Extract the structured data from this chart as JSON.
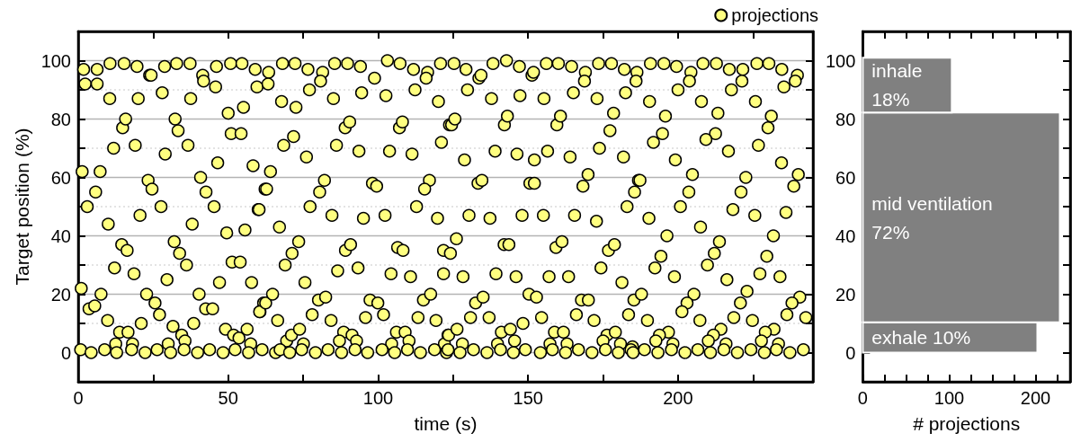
{
  "chart_data": [
    {
      "type": "scatter",
      "xlabel": "time (s)",
      "ylabel": "Target position (%)",
      "legend": "top right",
      "marker": "circle",
      "grid": "y",
      "xlim": [
        0,
        245
      ],
      "xticks": [
        0,
        {
          "value": 25,
          "label": null
        },
        50,
        {
          "value": 75,
          "label": null
        },
        100,
        {
          "value": 125,
          "label": null
        },
        150,
        {
          "value": 175,
          "label": null
        },
        200,
        {
          "value": 225,
          "label": null
        }
      ],
      "ylim": [
        -10,
        110
      ],
      "yticks": [
        0,
        {
          "value": 10,
          "label": null
        },
        20,
        {
          "value": 30,
          "label": null
        },
        40,
        {
          "value": 50,
          "label": null
        },
        60,
        {
          "value": 70,
          "label": null
        },
        80,
        {
          "value": 90,
          "label": null
        },
        100
      ],
      "series": [
        {
          "name": "projections",
          "color": "#ffff80",
          "x": [
            1.8,
            2.3,
            6.3,
            6.3,
            10.6,
            15.3,
            19.6,
            23.8,
            24.3,
            28.8,
            32.8,
            37.3,
            41.5,
            41.8,
            46.1,
            45.8,
            50.8,
            54.6,
            59.0,
            59.6,
            10.5,
            20,
            28,
            37.5,
            50,
            55.1,
            14.8,
            15.8,
            32.3,
            33.3,
            51,
            54.3,
            11.8,
            19,
            29,
            36.6,
            46.5,
            58.3,
            1.3,
            7.3,
            23.3,
            24.6,
            40.8,
            42.6,
            62.3,
            3,
            5.8,
            27.6,
            45.3,
            60,
            10,
            20.6,
            38,
            49.5,
            55.6,
            14.5,
            16.3,
            32,
            33.8,
            36.1,
            51.3,
            54,
            12.1,
            18.6,
            29.6,
            47.1,
            57.8,
            1,
            7.6,
            22.8,
            25.6,
            3.6,
            5.5,
            40.3,
            42.5,
            44.8,
            61.8,
            60.6,
            9.8,
            21,
            27.1,
            38.5,
            49.1,
            56.3,
            13.8,
            16.6,
            18.1,
            12.5,
            31.6,
            34.5,
            35.6,
            51.8,
            53.6,
            30,
            57.5,
            0.8,
            4.3,
            8.8,
            12.8,
            17.8,
            22.3,
            26.3,
            30.8,
            35.3,
            39.8,
            43.8,
            48.3,
            52.3,
            56.8,
            61.3,
            63.5,
            63.3,
            68.1,
            72.3,
            76.6,
            81.5,
            80.8,
            85.5,
            89.8,
            94.1,
            98.8,
            103.1,
            107.3,
            111.8,
            116.5,
            116,
            120.8,
            67.8,
            72.6,
            77.1,
            85.1,
            94.5,
            102.6,
            112.3,
            120.1,
            89,
            90.5,
            107.1,
            108.1,
            123.8,
            68.5,
            71.8,
            76.1,
            86.1,
            93.6,
            103.8,
            111.3,
            121.1,
            64.1,
            62.8,
            82.1,
            80.5,
            98.1,
            99.5,
            117.1,
            115.5,
            60.3,
            77.3,
            84.6,
            95.1,
            102.3,
            112.8,
            119.8,
            67.1,
            73.5,
            71.3,
            69,
            75.6,
            89.1,
            90.8,
            86.5,
            93.3,
            106.5,
            108.3,
            104.3,
            110.8,
            121.8,
            121.8,
            60.5,
            62.5,
            64.8,
            66.5,
            78,
            80.1,
            82.5,
            84.3,
            97.3,
            99.9,
            95.8,
            101.8,
            113.3,
            115.1,
            117.5,
            119.3,
            69.5,
            71.1,
            73.8,
            75.1,
            88.5,
            91.3,
            92.8,
            87.1,
            106.1,
            109,
            110.3,
            104.5,
            123.3,
            122.1,
            65.8,
            67.3,
            70.5,
            74.5,
            79.1,
            83.3,
            87.8,
            92.3,
            96.5,
            101.3,
            105.5,
            109.8,
            114.1,
            118.8,
            122.8,
            125.3,
            129.3,
            133.6,
            134.3,
            138.3,
            142.8,
            147.1,
            151.3,
            151.8,
            156.1,
            160.1,
            164.5,
            169.1,
            168.8,
            173.5,
            177.8,
            182.1,
            186.3,
            186,
            129.8,
            137.8,
            147.3,
            155.3,
            165.1,
            173,
            182.5,
            124.5,
            125.6,
            142.1,
            143.1,
            159.6,
            160.8,
            178.5,
            177.3,
            128.8,
            139,
            146.3,
            152.1,
            156.5,
            164,
            173.8,
            181.8,
            133.3,
            134.6,
            150.6,
            152.1,
            168.3,
            170,
            186.8,
            185.5,
            130.3,
            137.3,
            148,
            155.1,
            165.5,
            172.8,
            183,
            126.1,
            124.1,
            142,
            143.6,
            159.3,
            161.3,
            176.8,
            178.8,
            128.3,
            139.3,
            146,
            157,
            163.5,
            174.3,
            181.3,
            132.5,
            135,
            130.8,
            137,
            150.3,
            152.8,
            148.3,
            154.5,
            167.8,
            170.1,
            166.1,
            172,
            185.3,
            183.5,
            123.5,
            126.3,
            128.1,
            139.8,
            141.1,
            144.1,
            145.5,
            158.8,
            161.8,
            157.3,
            163,
            176.3,
            179.1,
            175,
            180.8,
            184.8,
            123.3,
            127.3,
            131.8,
            136.3,
            140.8,
            145.1,
            149.1,
            154.1,
            158.1,
            162.5,
            166.8,
            171.3,
            175.8,
            180.1,
            184.3,
            190.8,
            195.3,
            199.5,
            204.3,
            203.8,
            208.3,
            212.8,
            217.1,
            221.6,
            221.3,
            226.3,
            230.3,
            234.6,
            239.8,
            239.1,
            190.5,
            200,
            207.8,
            217.8,
            225.8,
            235.3,
            195.8,
            213.3,
            231.1,
            194.8,
            191.8,
            212.5,
            209.3,
            230,
            226.8,
            199.1,
            216.8,
            234.5,
            187.3,
            204.8,
            203.6,
            222.6,
            221,
            240.1,
            238.6,
            190.3,
            200.8,
            207.5,
            218.3,
            225.6,
            236,
            196.3,
            194.3,
            192.3,
            198.8,
            213.8,
            212.1,
            209.8,
            216.3,
            231.8,
            229.6,
            227.3,
            234,
            187.8,
            189.8,
            205.3,
            203,
            201.3,
            207.3,
            223,
            220.8,
            218.6,
            224.8,
            240.6,
            238,
            236.3,
            242.6,
            196.8,
            193.8,
            192.6,
            198.3,
            214.3,
            211.8,
            210.1,
            216,
            232,
            229.1,
            227.8,
            233.5,
            185,
            188.8,
            193.3,
            197.8,
            202.3,
            206.6,
            210.8,
            215.3,
            219.8,
            224.3,
            228.8,
            232.8,
            237.3,
            241.8
          ],
          "values": [
            97,
            92,
            97,
            92,
            99,
            99,
            98,
            95,
            95,
            98,
            99,
            99,
            95,
            93,
            98,
            91,
            99,
            99,
            97,
            91,
            87,
            87,
            89,
            87,
            82,
            84,
            77,
            80,
            80,
            76,
            75,
            75,
            70,
            71,
            68,
            71,
            65,
            64,
            62,
            62,
            59,
            56,
            60,
            55,
            56,
            50,
            55,
            50,
            50,
            49,
            44,
            47,
            44,
            41,
            42,
            37,
            35,
            38,
            34,
            30,
            31,
            31,
            29,
            27,
            25,
            24,
            24,
            22,
            20,
            20,
            17,
            15,
            16,
            20,
            15,
            15,
            17,
            14,
            11,
            10,
            13,
            10,
            8,
            8,
            7,
            7,
            3,
            3,
            9,
            6,
            4,
            6,
            5,
            3,
            3,
            1,
            0,
            1,
            0,
            1,
            0,
            1,
            0,
            1,
            0,
            1,
            0,
            1,
            0,
            1,
            96,
            92,
            99,
            99,
            97,
            96,
            93,
            99,
            99,
            98,
            94,
            100,
            99,
            97,
            96,
            94,
            99,
            86,
            84,
            90,
            87,
            89,
            88,
            90,
            86,
            77,
            79,
            77,
            79,
            78,
            71,
            74,
            67,
            71,
            69,
            69,
            68,
            72,
            62,
            56,
            59,
            55,
            58,
            57,
            59,
            56,
            49,
            50,
            47,
            46,
            47,
            50,
            46,
            43,
            38,
            34,
            30,
            24,
            35,
            37,
            28,
            29,
            36,
            35,
            27,
            26,
            35,
            27,
            14,
            17,
            20,
            11,
            13,
            18,
            19,
            11,
            18,
            17,
            12,
            13,
            12,
            18,
            20,
            11,
            4,
            6,
            8,
            3,
            7,
            6,
            4,
            4,
            7,
            7,
            4,
            3,
            6,
            3,
            0,
            1,
            0,
            1,
            0,
            1,
            0,
            1,
            0,
            1,
            0,
            1,
            0,
            1,
            0,
            99,
            97,
            94,
            95,
            99,
            100,
            98,
            95,
            96,
            99,
            99,
            98,
            96,
            93,
            99,
            99,
            97,
            96,
            93,
            90,
            87,
            88,
            87,
            89,
            87,
            89,
            78,
            80,
            78,
            81,
            78,
            81,
            82,
            76,
            66,
            69,
            68,
            66,
            69,
            67,
            70,
            67,
            58,
            59,
            58,
            58,
            57,
            61,
            59,
            55,
            47,
            46,
            47,
            47,
            47,
            45,
            50,
            39,
            34,
            37,
            37,
            36,
            38,
            35,
            37,
            26,
            27,
            26,
            26,
            26,
            29,
            24,
            17,
            19,
            12,
            12,
            20,
            19,
            10,
            12,
            18,
            18,
            13,
            11,
            18,
            13,
            6,
            8,
            3,
            3,
            7,
            8,
            4,
            7,
            7,
            3,
            3,
            6,
            7,
            4,
            3,
            2,
            1,
            0,
            1,
            0,
            1,
            0,
            1,
            0,
            1,
            0,
            1,
            0,
            1,
            0,
            1,
            99,
            99,
            98,
            96,
            93,
            99,
            99,
            97,
            97,
            93,
            99,
            99,
            97,
            95,
            93,
            86,
            90,
            86,
            90,
            86,
            91,
            81,
            82,
            81,
            75,
            72,
            75,
            73,
            77,
            71,
            66,
            69,
            65,
            59,
            61,
            55,
            60,
            55,
            61,
            57,
            46,
            50,
            43,
            49,
            47,
            48,
            40,
            33,
            29,
            26,
            38,
            34,
            30,
            25,
            40,
            33,
            27,
            26,
            20,
            11,
            20,
            17,
            14,
            11,
            21,
            17,
            12,
            11,
            19,
            17,
            13,
            12,
            7,
            6,
            4,
            3,
            8,
            6,
            4,
            3,
            8,
            7,
            4,
            3,
            0,
            1,
            0,
            1,
            0,
            1,
            0,
            1,
            0,
            1,
            0,
            1,
            0,
            1
          ]
        }
      ]
    },
    {
      "type": "histogram",
      "orientation": "horizontal",
      "xlabel": "# projections",
      "bins": [
        0,
        10.4,
        82.2,
        101
      ],
      "values": [
        202,
        228,
        103
      ],
      "color": "#808080",
      "xlim": [
        0,
        240
      ],
      "xticks": [
        0,
        {
          "value": 25,
          "label": null
        },
        {
          "value": 50,
          "label": null
        },
        {
          "value": 75,
          "label": null
        },
        100,
        {
          "value": 125,
          "label": null
        },
        {
          "value": 150,
          "label": null
        },
        {
          "value": 175,
          "label": null
        },
        200,
        {
          "value": 225,
          "label": null
        }
      ],
      "ylim": [
        -10,
        110
      ],
      "yticks": [
        0,
        {
          "value": 10,
          "label": null
        },
        20,
        {
          "value": 30,
          "label": null
        },
        40,
        {
          "value": 50,
          "label": null
        },
        60,
        {
          "value": 70,
          "label": null
        },
        80,
        {
          "value": 90,
          "label": null
        },
        100
      ],
      "annotations": [
        "inhale\n18%",
        "mid ventilation\n72%",
        "exhale 10%"
      ]
    }
  ]
}
